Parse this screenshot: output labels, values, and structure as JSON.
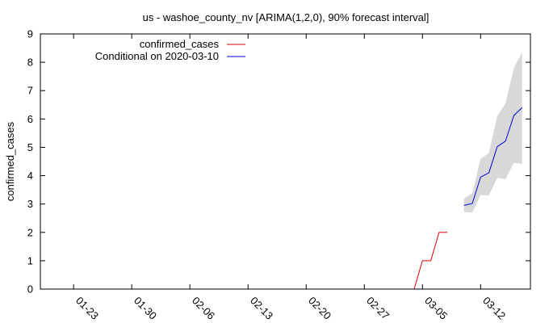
{
  "chart_data": {
    "type": "line",
    "title": "us - washoe_county_nv [ARIMA(1,2,0), 90% forecast interval]",
    "xlabel": "",
    "ylabel": "confirmed_cases",
    "ylim": [
      0,
      9
    ],
    "xlim": [
      "2020-01-19",
      "2020-03-18"
    ],
    "x_ticks": [
      "01-23",
      "01-30",
      "02-06",
      "02-13",
      "02-20",
      "02-27",
      "03-05",
      "03-12"
    ],
    "y_ticks": [
      0,
      1,
      2,
      3,
      4,
      5,
      6,
      7,
      8,
      9
    ],
    "grid": false,
    "legend_position": "top-left",
    "series": [
      {
        "name": "confirmed_cases",
        "color": "#dd0000",
        "points": [
          {
            "x": "2020-03-04",
            "y": 0
          },
          {
            "x": "2020-03-05",
            "y": 1
          },
          {
            "x": "2020-03-06",
            "y": 1
          },
          {
            "x": "2020-03-07",
            "y": 2
          },
          {
            "x": "2020-03-08",
            "y": 2
          }
        ]
      },
      {
        "name": "Conditional on 2020-03-10",
        "color": "#0000dd",
        "points": [
          {
            "x": "2020-03-10",
            "y": 2.95
          },
          {
            "x": "2020-03-11",
            "y": 3.02
          },
          {
            "x": "2020-03-12",
            "y": 3.95
          },
          {
            "x": "2020-03-13",
            "y": 4.1
          },
          {
            "x": "2020-03-14",
            "y": 5.02
          },
          {
            "x": "2020-03-15",
            "y": 5.22
          },
          {
            "x": "2020-03-16",
            "y": 6.12
          },
          {
            "x": "2020-03-17",
            "y": 6.4
          }
        ]
      }
    ],
    "interval": {
      "color": "#d8d8d8",
      "points": [
        {
          "x": "2020-03-10",
          "lower": 2.72,
          "upper": 3.2
        },
        {
          "x": "2020-03-11",
          "lower": 2.7,
          "upper": 3.38
        },
        {
          "x": "2020-03-12",
          "lower": 3.32,
          "upper": 4.6
        },
        {
          "x": "2020-03-13",
          "lower": 3.3,
          "upper": 4.8
        },
        {
          "x": "2020-03-14",
          "lower": 3.92,
          "upper": 6.1
        },
        {
          "x": "2020-03-15",
          "lower": 3.88,
          "upper": 6.55
        },
        {
          "x": "2020-03-16",
          "lower": 4.45,
          "upper": 7.8
        },
        {
          "x": "2020-03-17",
          "lower": 4.42,
          "upper": 8.35
        }
      ]
    }
  }
}
